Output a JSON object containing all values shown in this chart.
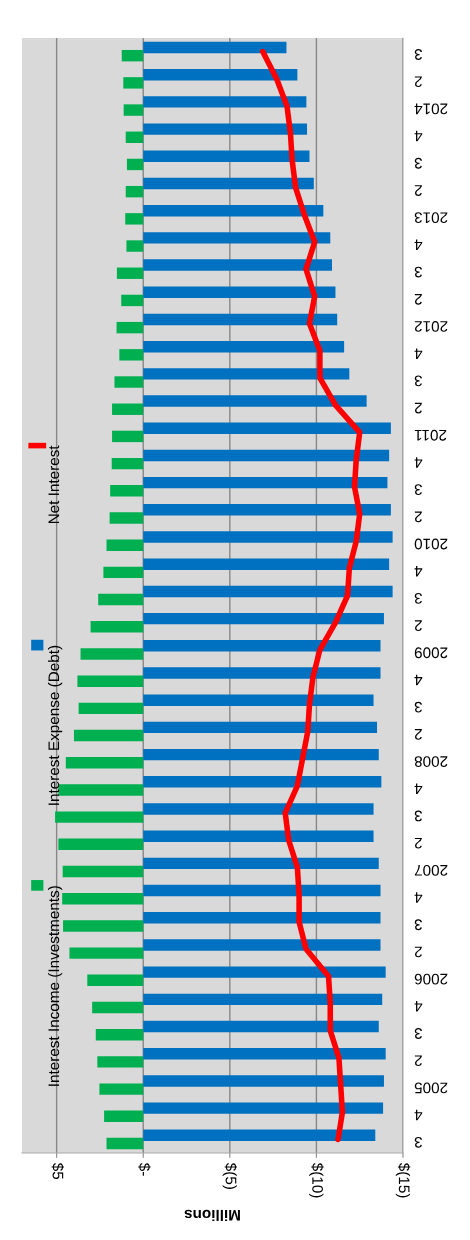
{
  "chart_data": {
    "type": "bar",
    "orientation": "horizontal",
    "xlabel": "Millions",
    "categories": [
      "3",
      "2",
      "2014",
      "4",
      "3",
      "2",
      "2013",
      "4",
      "3",
      "2",
      "2012",
      "4",
      "3",
      "2",
      "2011",
      "4",
      "3",
      "2",
      "2010",
      "4",
      "3",
      "2",
      "2009",
      "4",
      "3",
      "2",
      "2008",
      "4",
      "3",
      "2",
      "2007",
      "4",
      "3",
      "2",
      "2006",
      "4",
      "3",
      "2",
      "2005",
      "4",
      "3"
    ],
    "series": [
      {
        "name": "Interest Income (Investments)",
        "color": "#00b050",
        "values": [
          1.24,
          1.15,
          1.13,
          1.01,
          0.94,
          1.01,
          1.04,
          0.97,
          1.52,
          1.27,
          1.54,
          1.38,
          1.66,
          1.8,
          1.8,
          1.82,
          1.91,
          1.94,
          2.12,
          2.3,
          2.6,
          3.04,
          3.62,
          3.8,
          3.73,
          4.0,
          4.47,
          4.9,
          5.09,
          4.9,
          4.65,
          4.68,
          4.63,
          4.26,
          3.23,
          2.95,
          2.74,
          2.65,
          2.53,
          2.26,
          2.12
        ]
      },
      {
        "name": "Interest Expense (Debt)",
        "color": "#0070c0",
        "values": [
          -8.27,
          -8.9,
          -9.42,
          -9.46,
          -9.6,
          -9.85,
          -10.4,
          -10.8,
          -10.9,
          -11.1,
          -11.2,
          -11.6,
          -11.9,
          -12.9,
          -14.3,
          -14.2,
          -14.1,
          -14.3,
          -14.4,
          -14.2,
          -14.4,
          -13.9,
          -13.7,
          -13.7,
          -13.3,
          -13.5,
          -13.6,
          -13.75,
          -13.3,
          -13.3,
          -13.6,
          -13.7,
          -13.7,
          -13.7,
          -14.0,
          -13.8,
          -13.6,
          -14.0,
          -13.9,
          -13.85,
          -13.4
        ]
      },
      {
        "name": "Net Interest",
        "color": "#ff0000",
        "type": "line",
        "values": [
          -6.9,
          -7.7,
          -8.3,
          -8.5,
          -8.6,
          -8.8,
          -9.3,
          -9.9,
          -9.4,
          -9.9,
          -9.6,
          -10.2,
          -10.2,
          -11.1,
          -12.5,
          -12.3,
          -12.2,
          -12.5,
          -12.3,
          -11.9,
          -11.8,
          -11.1,
          -10.2,
          -9.8,
          -9.6,
          -9.5,
          -9.2,
          -8.9,
          -8.2,
          -8.4,
          -8.9,
          -9.0,
          -9.0,
          -9.4,
          -10.7,
          -10.8,
          -10.8,
          -11.3,
          -11.4,
          -11.5,
          -11.25
        ]
      }
    ],
    "xlim": [
      7,
      -15
    ],
    "xticks": [
      {
        "value": 5,
        "label": "$5"
      },
      {
        "value": 0,
        "label": "$-"
      },
      {
        "value": -5,
        "label": "$(5)"
      },
      {
        "value": -10,
        "label": "$(10)"
      },
      {
        "value": -15,
        "label": "$(15)"
      }
    ],
    "grid": "x",
    "legend": "left",
    "marker": "none",
    "line_style": "solid"
  }
}
